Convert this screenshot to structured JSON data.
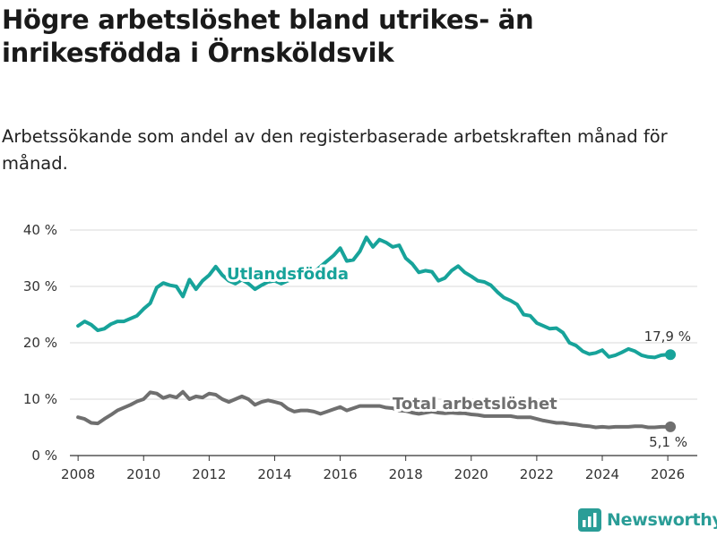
{
  "title": "Högre arbetslöshet bland utrikes- än inrikesfödda i Örnsköldsvik",
  "subtitle": "Arbetssökande som andel av den registerbaserade arbetskraften månad för månad.",
  "brand": {
    "name": "Newsworthy",
    "icon": "bar-chart-icon"
  },
  "colors": {
    "foreign": "#17a39a",
    "total": "#6f6f6f",
    "grid": "#d9d9d9",
    "text": "#333333"
  },
  "chart_data": {
    "type": "line",
    "title": "Högre arbetslöshet bland utrikes- än inrikesfödda i Örnsköldsvik",
    "subtitle": "Arbetssökande som andel av den registerbaserade arbetskraften månad för månad.",
    "xlabel": "",
    "ylabel": "",
    "ylim": [
      0,
      40
    ],
    "xlim": [
      2007.75,
      2026.9
    ],
    "y_ticks": [
      0,
      10,
      20,
      30,
      40
    ],
    "y_tick_labels": [
      "0 %",
      "10 %",
      "20 %",
      "30 %",
      "40 %"
    ],
    "x_ticks": [
      2008,
      2010,
      2012,
      2014,
      2016,
      2018,
      2020,
      2022,
      2024,
      2026
    ],
    "x_tick_labels": [
      "2008",
      "2010",
      "2012",
      "2014",
      "2016",
      "2018",
      "2020",
      "2022",
      "2024",
      "2026"
    ],
    "grid": true,
    "series": [
      {
        "name": "Utlandsfödda",
        "end_label": "17,9 %",
        "x": [
          2008.0,
          2008.2,
          2008.4,
          2008.6,
          2008.8,
          2009.0,
          2009.2,
          2009.4,
          2009.6,
          2009.8,
          2010.0,
          2010.2,
          2010.4,
          2010.6,
          2010.8,
          2011.0,
          2011.2,
          2011.4,
          2011.6,
          2011.8,
          2012.0,
          2012.2,
          2012.4,
          2012.6,
          2012.8,
          2013.0,
          2013.2,
          2013.4,
          2013.6,
          2013.8,
          2014.0,
          2014.2,
          2014.4,
          2014.6,
          2014.8,
          2015.0,
          2015.2,
          2015.4,
          2015.6,
          2015.8,
          2016.0,
          2016.2,
          2016.4,
          2016.6,
          2016.8,
          2017.0,
          2017.2,
          2017.4,
          2017.6,
          2017.8,
          2018.0,
          2018.2,
          2018.4,
          2018.6,
          2018.8,
          2019.0,
          2019.2,
          2019.4,
          2019.6,
          2019.8,
          2020.0,
          2020.2,
          2020.4,
          2020.6,
          2020.8,
          2021.0,
          2021.2,
          2021.4,
          2021.6,
          2021.8,
          2022.0,
          2022.2,
          2022.4,
          2022.6,
          2022.8,
          2023.0,
          2023.2,
          2023.4,
          2023.6,
          2023.8,
          2024.0,
          2024.2,
          2024.4,
          2024.6,
          2024.8,
          2025.0,
          2025.2,
          2025.4,
          2025.6,
          2025.8,
          2026.0,
          2026.08
        ],
        "values": [
          23.0,
          23.8,
          23.2,
          22.2,
          22.5,
          23.3,
          23.8,
          23.8,
          24.3,
          24.8,
          26.0,
          27.0,
          29.8,
          30.6,
          30.2,
          30.0,
          28.2,
          31.2,
          29.5,
          31.0,
          32.0,
          33.5,
          32.0,
          31.0,
          30.5,
          31.2,
          30.5,
          29.5,
          30.2,
          30.8,
          31.0,
          30.5,
          31.0,
          31.5,
          32.2,
          31.8,
          32.5,
          33.5,
          34.5,
          35.5,
          36.8,
          34.5,
          34.7,
          36.2,
          38.7,
          37.0,
          38.3,
          37.8,
          37.0,
          37.3,
          35.0,
          34.0,
          32.5,
          32.8,
          32.6,
          31.0,
          31.5,
          32.8,
          33.6,
          32.5,
          31.8,
          31.0,
          30.8,
          30.2,
          29.0,
          28.0,
          27.5,
          26.8,
          25.0,
          24.8,
          23.5,
          23.0,
          22.5,
          22.6,
          21.8,
          20.0,
          19.5,
          18.5,
          18.0,
          18.2,
          18.7,
          17.5,
          17.8,
          18.3,
          18.9,
          18.5,
          17.8,
          17.5,
          17.4,
          17.8,
          17.9,
          17.9
        ]
      },
      {
        "name": "Total arbetslöshet",
        "end_label": "5,1 %",
        "x": [
          2008.0,
          2008.2,
          2008.4,
          2008.6,
          2008.8,
          2009.0,
          2009.2,
          2009.4,
          2009.6,
          2009.8,
          2010.0,
          2010.2,
          2010.4,
          2010.6,
          2010.8,
          2011.0,
          2011.2,
          2011.4,
          2011.6,
          2011.8,
          2012.0,
          2012.2,
          2012.4,
          2012.6,
          2012.8,
          2013.0,
          2013.2,
          2013.4,
          2013.6,
          2013.8,
          2014.0,
          2014.2,
          2014.4,
          2014.6,
          2014.8,
          2015.0,
          2015.2,
          2015.4,
          2015.6,
          2015.8,
          2016.0,
          2016.2,
          2016.4,
          2016.6,
          2016.8,
          2017.0,
          2017.2,
          2017.4,
          2017.6,
          2017.8,
          2018.0,
          2018.2,
          2018.4,
          2018.6,
          2018.8,
          2019.0,
          2019.2,
          2019.4,
          2019.6,
          2019.8,
          2020.0,
          2020.2,
          2020.4,
          2020.6,
          2020.8,
          2021.0,
          2021.2,
          2021.4,
          2021.6,
          2021.8,
          2022.0,
          2022.2,
          2022.4,
          2022.6,
          2022.8,
          2023.0,
          2023.2,
          2023.4,
          2023.6,
          2023.8,
          2024.0,
          2024.2,
          2024.4,
          2024.6,
          2024.8,
          2025.0,
          2025.2,
          2025.4,
          2025.6,
          2025.8,
          2026.0,
          2026.08
        ],
        "values": [
          6.8,
          6.5,
          5.8,
          5.7,
          6.5,
          7.2,
          8.0,
          8.5,
          9.0,
          9.6,
          10.0,
          11.2,
          11.0,
          10.2,
          10.6,
          10.3,
          11.3,
          10.0,
          10.5,
          10.3,
          11.0,
          10.8,
          10.0,
          9.5,
          10.0,
          10.5,
          10.0,
          9.0,
          9.5,
          9.8,
          9.5,
          9.2,
          8.3,
          7.8,
          8.0,
          8.0,
          7.8,
          7.4,
          7.8,
          8.2,
          8.6,
          8.0,
          8.4,
          8.8,
          8.8,
          8.8,
          8.8,
          8.5,
          8.4,
          8.0,
          7.9,
          7.6,
          7.4,
          7.6,
          7.8,
          7.6,
          7.5,
          7.6,
          7.5,
          7.5,
          7.3,
          7.2,
          7.0,
          7.0,
          7.0,
          7.0,
          7.0,
          6.8,
          6.8,
          6.8,
          6.5,
          6.2,
          6.0,
          5.8,
          5.8,
          5.6,
          5.5,
          5.3,
          5.2,
          5.0,
          5.1,
          5.0,
          5.1,
          5.1,
          5.1,
          5.2,
          5.2,
          5.0,
          5.0,
          5.1,
          5.1,
          5.1
        ]
      }
    ]
  }
}
